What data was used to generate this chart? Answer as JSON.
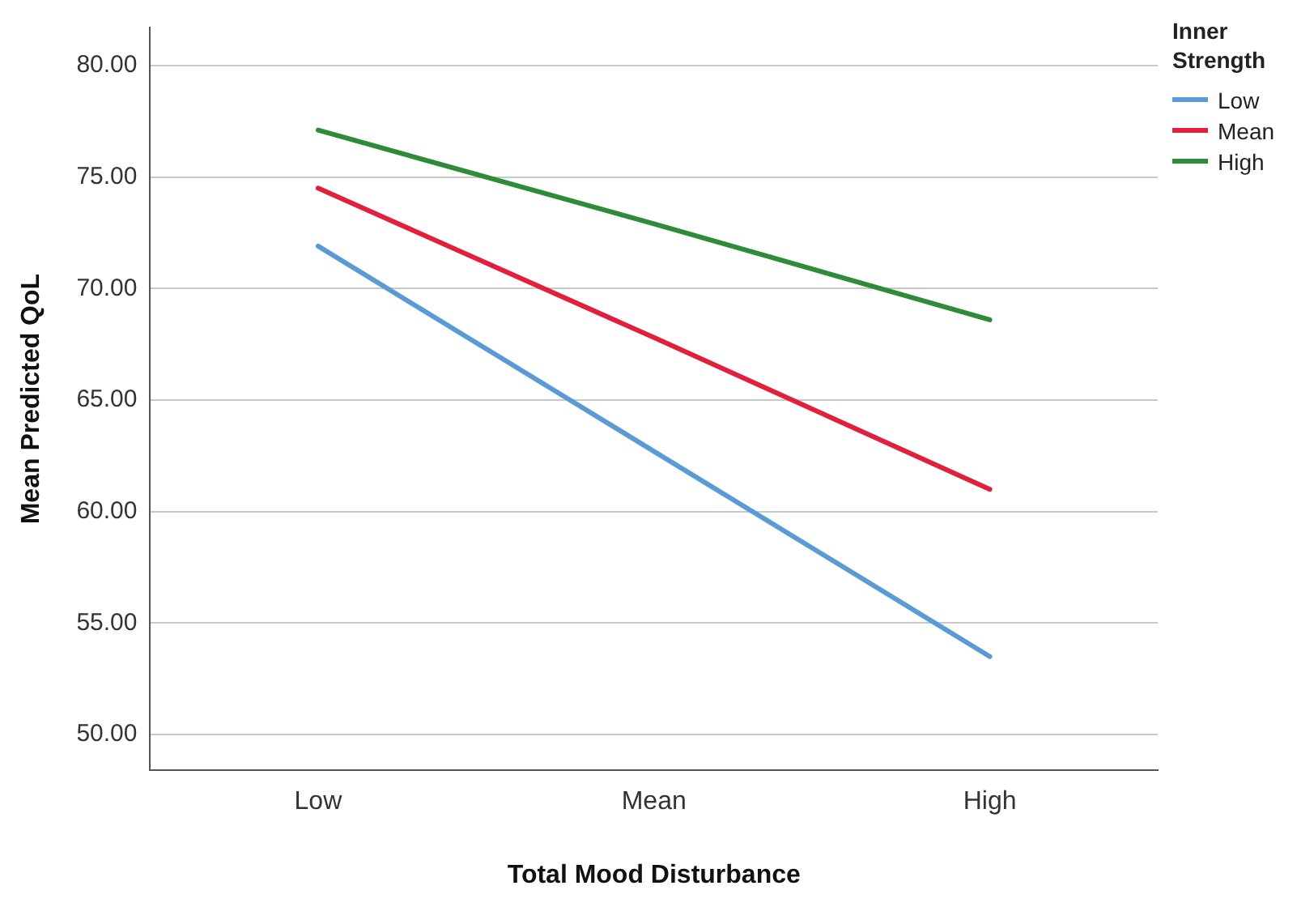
{
  "chart_data": {
    "type": "line",
    "xlabel": "Total Mood Disturbance",
    "ylabel": "Mean Predicted QoL",
    "legend_title": "Inner Strength",
    "legend": "top right",
    "grid": "y",
    "marker": "none",
    "line_style": "solid",
    "categories": [
      "Low",
      "Mean",
      "High"
    ],
    "series": [
      {
        "name": "Low",
        "color": "#5b9bd5",
        "values": [
          71.9,
          62.7,
          53.5
        ]
      },
      {
        "name": "Mean",
        "color": "#e0203c",
        "values": [
          74.5,
          67.8,
          61.0
        ]
      },
      {
        "name": "High",
        "color": "#2e8b3a",
        "values": [
          77.1,
          72.9,
          68.6
        ]
      }
    ],
    "ylim": [
      48.4,
      81.7
    ],
    "yticks": [
      {
        "value": 50,
        "label": "50.00"
      },
      {
        "value": 55,
        "label": "55.00"
      },
      {
        "value": 60,
        "label": "60.00"
      },
      {
        "value": 65,
        "label": "65.00"
      },
      {
        "value": 70,
        "label": "70.00"
      },
      {
        "value": 75,
        "label": "75.00"
      },
      {
        "value": 80,
        "label": "80.00"
      }
    ]
  }
}
